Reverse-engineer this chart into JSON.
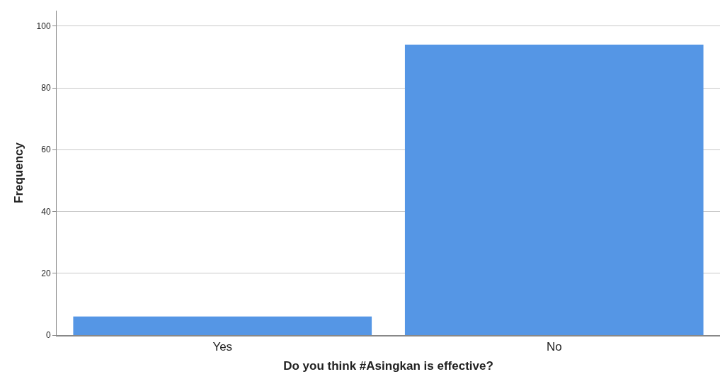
{
  "chart_data": {
    "type": "bar",
    "xlabel": "Do you think #Asingkan is effective?",
    "ylabel": "Frequency",
    "categories": [
      "Yes",
      "No"
    ],
    "values": [
      6,
      94
    ],
    "color": "#5596e5",
    "ylim": [
      0,
      105
    ],
    "yticks": [
      0,
      20,
      40,
      60,
      80,
      100
    ],
    "grid": "y"
  }
}
